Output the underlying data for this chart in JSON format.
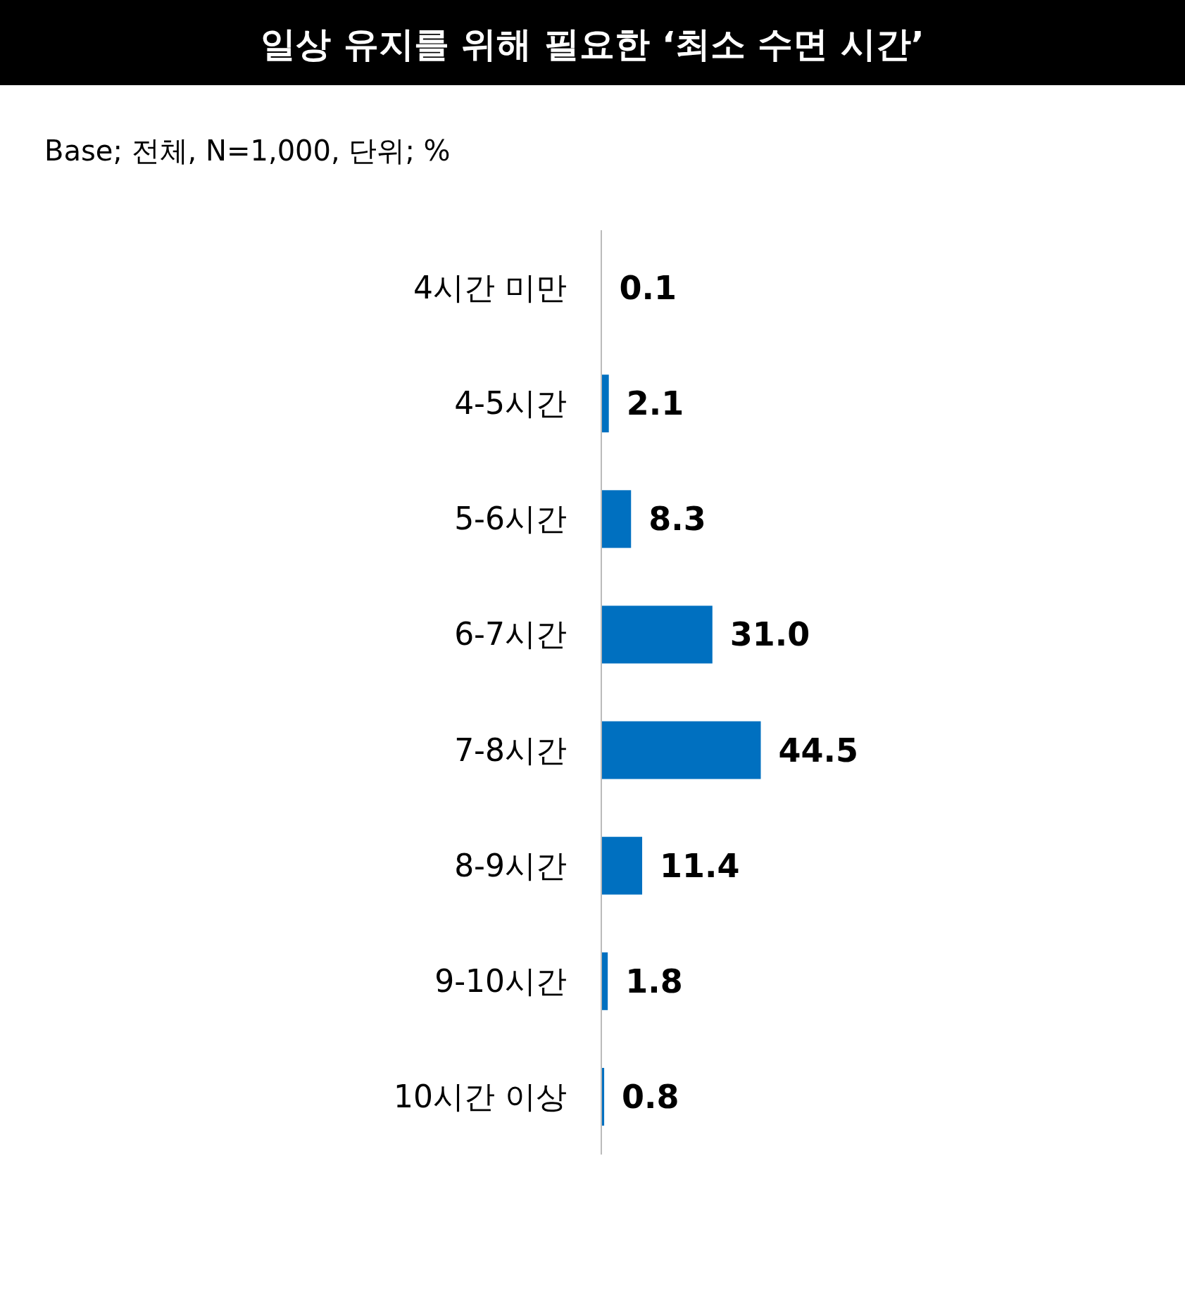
{
  "chart_data": {
    "type": "bar",
    "orientation": "horizontal",
    "title": "일상 유지를 위해 필요한 ‘최소 수면 시간’",
    "subtitle": "Base; 전체, N=1,000, 단위; %",
    "categories": [
      "4시간 미만",
      "4-5시간",
      "5-6시간",
      "6-7시간",
      "7-8시간",
      "8-9시간",
      "9-10시간",
      "10시간 이상"
    ],
    "values": [
      0.1,
      2.1,
      8.3,
      31.0,
      44.5,
      11.4,
      1.8,
      0.8
    ],
    "value_labels": [
      "0.1",
      "2.1",
      "8.3",
      "31.0",
      "44.5",
      "11.4",
      "1.8",
      "0.8"
    ],
    "color": "#0070c0"
  }
}
